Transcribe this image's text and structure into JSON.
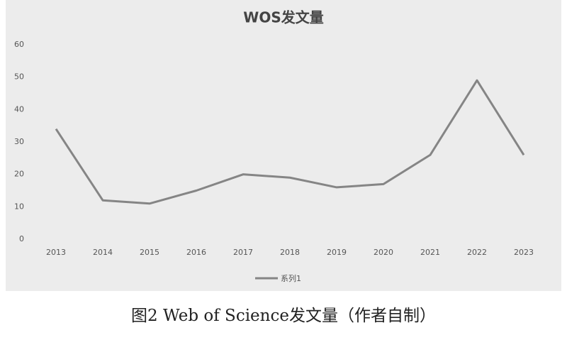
{
  "chart_data": {
    "type": "line",
    "title": "WOS发文量",
    "categories": [
      "2013",
      "2014",
      "2015",
      "2016",
      "2017",
      "2018",
      "2019",
      "2020",
      "2021",
      "2022",
      "2023"
    ],
    "series": [
      {
        "name": "系列1",
        "color": "#858585",
        "values": [
          34,
          12,
          11,
          15,
          20,
          19,
          16,
          17,
          26,
          49,
          26
        ]
      }
    ],
    "ylim": [
      0,
      60
    ],
    "yticks": [
      0,
      10,
      20,
      30,
      40,
      50,
      60
    ],
    "grid": false,
    "legend": "bottom"
  },
  "caption": "图2 Web of Science发文量（作者自制）"
}
